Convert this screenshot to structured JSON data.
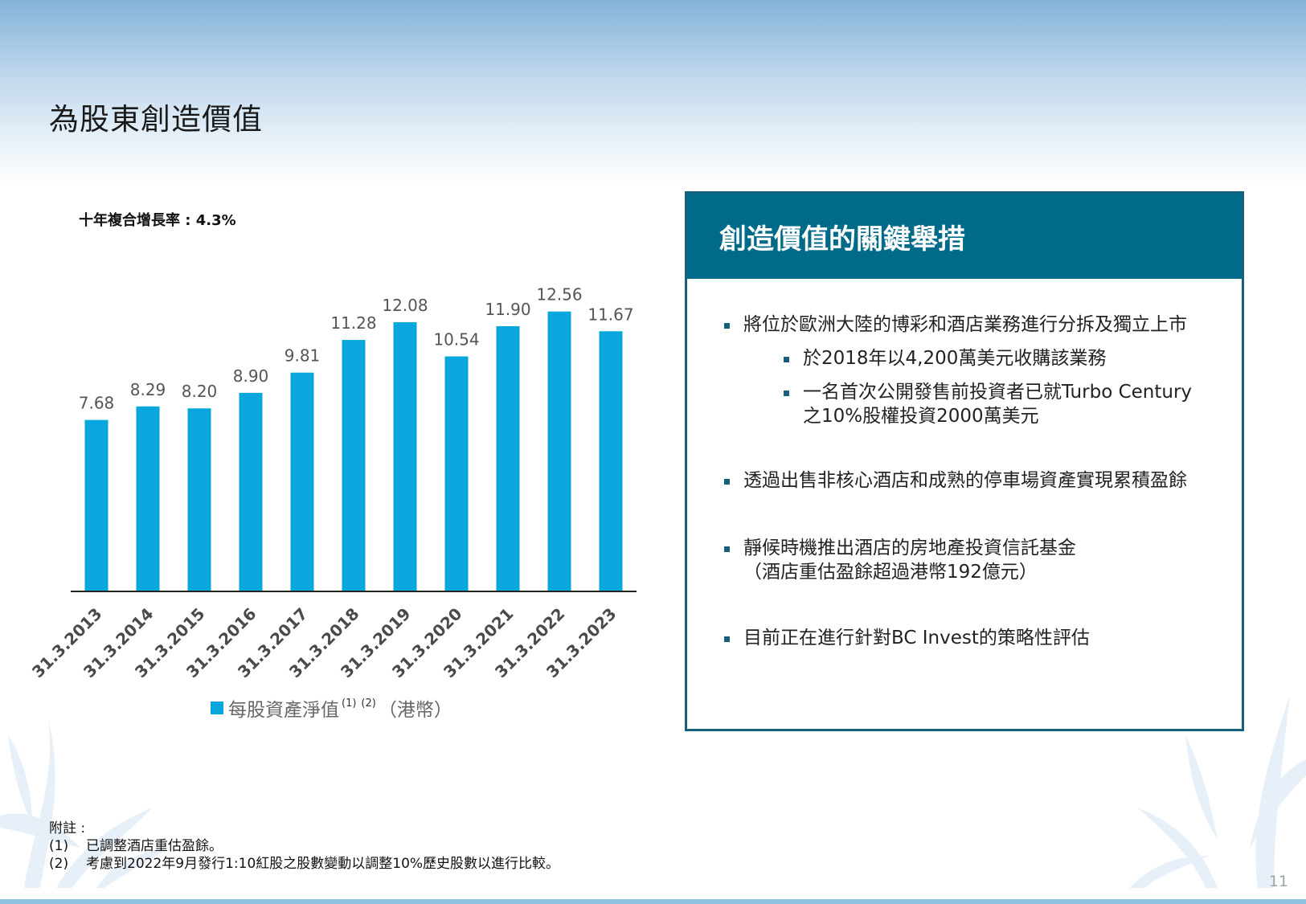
{
  "slide": {
    "title": "為股東創造價值",
    "page_number": "11",
    "cagr_label": "十年複合增長率 : 4.3%"
  },
  "legend": {
    "label": "每股資產淨值",
    "note_refs": [
      "(1)",
      "(2)"
    ],
    "unit": "（港幣）"
  },
  "chart_data": {
    "type": "bar",
    "categories": [
      "31.3.2013",
      "31.3.2014",
      "31.3.2015",
      "31.3.2016",
      "31.3.2017",
      "31.3.2018",
      "31.3.2019",
      "31.3.2020",
      "31.3.2021",
      "31.3.2022",
      "31.3.2023"
    ],
    "values": [
      7.68,
      8.29,
      8.2,
      8.9,
      9.81,
      11.28,
      12.08,
      10.54,
      11.9,
      12.56,
      11.67
    ],
    "value_labels": [
      "7.68",
      "8.29",
      "8.20",
      "8.90",
      "9.81",
      "11.28",
      "12.08",
      "10.54",
      "11.90",
      "12.56",
      "11.67"
    ],
    "ylim": [
      0,
      14
    ],
    "bar_color": "#07a6de",
    "grid": false,
    "legend_position": "bottom"
  },
  "panel": {
    "title": "創造價值的關鍵舉措",
    "bullets": [
      "將位於歐洲大陸的博彩和酒店業務進行分拆及獨立上市",
      "於2018年以4,200萬美元收購該業務",
      "一名首次公開發售前投資者已就Turbo Century",
      "之10%股權投資2000萬美元",
      "透過出售非核心酒店和成熟的停車場資產實現累積盈餘",
      "靜候時機推出酒店的房地產投資信託基金",
      "（酒店重估盈餘超過港幣192億元）",
      "目前正在進行針對BC Invest的策略性評估"
    ]
  },
  "notes": {
    "heading": "附註 :",
    "items": [
      {
        "num": "(1)",
        "text": "已調整酒店重估盈餘。"
      },
      {
        "num": "(2)",
        "text": "考慮到2022年9月發行1:10紅股之股數變動以調整10%歷史股數以進行比較。"
      }
    ]
  },
  "colors": {
    "panel_header": "#006b88",
    "panel_border": "#17607b",
    "bar": "#07a6de"
  }
}
